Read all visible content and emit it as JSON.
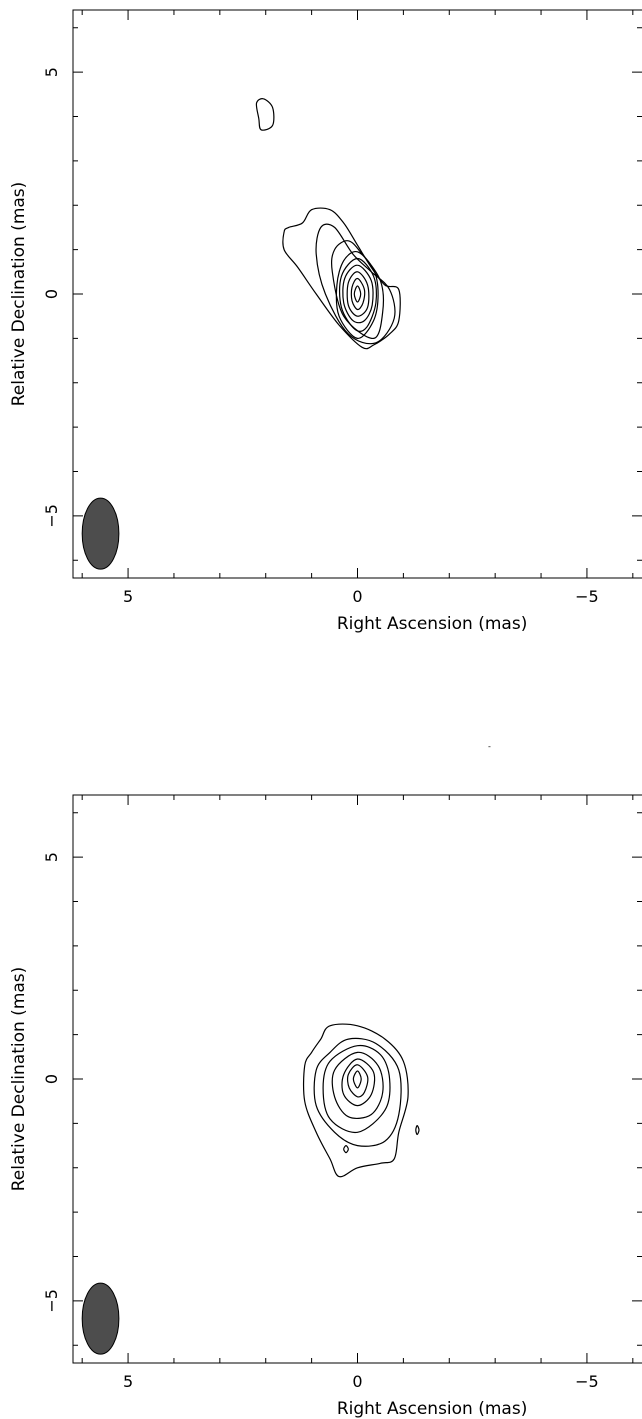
{
  "chart_data": [
    {
      "type": "contour",
      "xlabel": "Right Ascension  (mas)",
      "ylabel": "Relative Declination  (mas)",
      "xlim": [
        6.2,
        -6.2
      ],
      "ylim": [
        -6.4,
        6.4
      ],
      "x_ticks": [
        5,
        0,
        -5
      ],
      "x_tick_labels": [
        "5",
        "0",
        "−5"
      ],
      "y_ticks": [
        5,
        0,
        -5
      ],
      "y_tick_labels": [
        "5",
        "0",
        "−5"
      ],
      "beam": {
        "ra": 5.6,
        "dec": -5.4,
        "major_axis": 0.8,
        "minor_axis": 0.4,
        "position_angle_deg": 0,
        "color": "#4d4d4d"
      },
      "contours": [
        {
          "level": 1,
          "points": [
            [
              1.5,
              1.5
            ],
            [
              1.2,
              1.6
            ],
            [
              1.0,
              1.9
            ],
            [
              0.6,
              1.9
            ],
            [
              0.3,
              1.6
            ],
            [
              0.0,
              1.1
            ],
            [
              -0.3,
              0.6
            ],
            [
              -0.6,
              0.2
            ],
            [
              -0.9,
              0.1
            ],
            [
              -0.9,
              -0.6
            ],
            [
              -0.7,
              -0.9
            ],
            [
              -0.35,
              -1.15
            ],
            [
              -0.1,
              -1.2
            ],
            [
              0.4,
              -0.7
            ],
            [
              0.9,
              0.0
            ],
            [
              1.3,
              0.6
            ],
            [
              1.6,
              1.0
            ],
            [
              1.6,
              1.4
            ]
          ]
        },
        {
          "level": 2,
          "points": [
            [
              0.8,
              1.5
            ],
            [
              0.5,
              1.5
            ],
            [
              0.1,
              0.9
            ],
            [
              -0.3,
              0.5
            ],
            [
              -0.7,
              0.1
            ],
            [
              -0.8,
              -0.55
            ],
            [
              -0.4,
              -1.1
            ],
            [
              0.2,
              -0.9
            ],
            [
              0.7,
              0.0
            ],
            [
              0.9,
              0.9
            ]
          ]
        },
        {
          "level": 3,
          "points": [
            [
              0.2,
              1.2
            ],
            [
              -0.1,
              0.9
            ],
            [
              -0.5,
              0.3
            ],
            [
              -0.55,
              -0.4
            ],
            [
              -0.35,
              -1.0
            ],
            [
              0.3,
              -0.5
            ],
            [
              0.55,
              0.5
            ],
            [
              0.5,
              1.0
            ]
          ]
        },
        {
          "level": 4,
          "points": [
            [
              0.0,
              0.95
            ],
            [
              -0.35,
              0.55
            ],
            [
              -0.45,
              0.0
            ],
            [
              -0.35,
              -0.6
            ],
            [
              0.0,
              -1.0
            ],
            [
              0.4,
              -0.5
            ],
            [
              0.45,
              0.2
            ],
            [
              0.3,
              0.75
            ]
          ]
        },
        {
          "level": 5,
          "points": [
            [
              0.0,
              0.8
            ],
            [
              -0.35,
              0.4
            ],
            [
              -0.4,
              -0.2
            ],
            [
              -0.2,
              -0.75
            ],
            [
              0.05,
              -0.8
            ],
            [
              0.35,
              -0.3
            ],
            [
              0.35,
              0.4
            ]
          ]
        },
        {
          "level": 6,
          "points": [
            [
              0.0,
              0.65
            ],
            [
              -0.3,
              0.3
            ],
            [
              -0.32,
              -0.25
            ],
            [
              -0.15,
              -0.6
            ],
            [
              0.1,
              -0.6
            ],
            [
              0.3,
              -0.2
            ],
            [
              0.28,
              0.35
            ]
          ]
        },
        {
          "level": 7,
          "points": [
            [
              0.0,
              0.5
            ],
            [
              -0.22,
              0.2
            ],
            [
              -0.22,
              -0.3
            ],
            [
              0.0,
              -0.5
            ],
            [
              0.2,
              -0.25
            ],
            [
              0.2,
              0.25
            ]
          ]
        },
        {
          "level": 8,
          "points": [
            [
              0.0,
              0.35
            ],
            [
              -0.15,
              0.1
            ],
            [
              -0.12,
              -0.2
            ],
            [
              0.0,
              -0.35
            ],
            [
              0.12,
              -0.15
            ],
            [
              0.12,
              0.15
            ]
          ]
        },
        {
          "level": 9,
          "points": [
            [
              0.0,
              0.18
            ],
            [
              -0.07,
              0.0
            ],
            [
              0.0,
              -0.18
            ],
            [
              0.07,
              0.0
            ]
          ]
        },
        {
          "level": 1,
          "points": [
            [
              2.05,
              4.4
            ],
            [
              1.85,
              4.2
            ],
            [
              1.85,
              3.8
            ],
            [
              2.1,
              3.7
            ],
            [
              2.15,
              3.95
            ],
            [
              2.2,
              4.3
            ]
          ]
        }
      ]
    },
    {
      "type": "contour",
      "xlabel": "Right Ascension  (mas)",
      "ylabel": "Relative Declination  (mas)",
      "xlim": [
        6.2,
        -6.2
      ],
      "ylim": [
        -6.4,
        6.4
      ],
      "x_ticks": [
        5,
        0,
        -5
      ],
      "x_tick_labels": [
        "5",
        "0",
        "−5"
      ],
      "y_ticks": [
        5,
        0,
        -5
      ],
      "y_tick_labels": [
        "5",
        "0",
        "−5"
      ],
      "beam": {
        "ra": 5.6,
        "dec": -5.4,
        "major_axis": 0.8,
        "minor_axis": 0.4,
        "position_angle_deg": 0,
        "color": "#4d4d4d"
      },
      "contours": [
        {
          "level": 1,
          "points": [
            [
              0.6,
              1.2
            ],
            [
              0.0,
              1.2
            ],
            [
              -0.6,
              0.9
            ],
            [
              -1.0,
              0.4
            ],
            [
              -1.1,
              -0.4
            ],
            [
              -0.9,
              -1.2
            ],
            [
              -0.8,
              -1.8
            ],
            [
              -0.5,
              -1.9
            ],
            [
              0.0,
              -2.0
            ],
            [
              0.4,
              -2.2
            ],
            [
              0.6,
              -1.8
            ],
            [
              0.9,
              -1.2
            ],
            [
              1.15,
              -0.5
            ],
            [
              1.15,
              0.3
            ],
            [
              1.0,
              0.6
            ],
            [
              0.8,
              0.9
            ]
          ]
        },
        {
          "level": 2,
          "points": [
            [
              0.2,
              0.9
            ],
            [
              -0.4,
              0.8
            ],
            [
              -0.9,
              0.2
            ],
            [
              -0.9,
              -0.8
            ],
            [
              -0.6,
              -1.4
            ],
            [
              0.0,
              -1.5
            ],
            [
              0.5,
              -1.2
            ],
            [
              0.9,
              -0.6
            ],
            [
              0.9,
              0.2
            ],
            [
              0.6,
              0.6
            ]
          ]
        },
        {
          "level": 3,
          "points": [
            [
              0.0,
              0.75
            ],
            [
              -0.5,
              0.55
            ],
            [
              -0.7,
              0.0
            ],
            [
              -0.6,
              -0.7
            ],
            [
              0.0,
              -1.2
            ],
            [
              0.6,
              -0.9
            ],
            [
              0.75,
              -0.2
            ],
            [
              0.6,
              0.4
            ]
          ]
        },
        {
          "level": 4,
          "points": [
            [
              0.0,
              0.6
            ],
            [
              -0.45,
              0.3
            ],
            [
              -0.55,
              -0.3
            ],
            [
              -0.3,
              -0.8
            ],
            [
              0.2,
              -0.85
            ],
            [
              0.5,
              -0.4
            ],
            [
              0.5,
              0.2
            ]
          ]
        },
        {
          "level": 5,
          "points": [
            [
              0.0,
              0.45
            ],
            [
              -0.35,
              0.15
            ],
            [
              -0.3,
              -0.35
            ],
            [
              0.0,
              -0.6
            ],
            [
              0.3,
              -0.35
            ],
            [
              0.3,
              0.1
            ]
          ]
        },
        {
          "level": 6,
          "points": [
            [
              0.0,
              0.32
            ],
            [
              -0.22,
              0.05
            ],
            [
              -0.15,
              -0.3
            ],
            [
              0.0,
              -0.4
            ],
            [
              0.18,
              -0.2
            ],
            [
              0.2,
              0.1
            ]
          ]
        },
        {
          "level": 7,
          "points": [
            [
              0.0,
              0.18
            ],
            [
              -0.08,
              0.0
            ],
            [
              0.0,
              -0.2
            ],
            [
              0.09,
              0.0
            ]
          ]
        },
        {
          "level": 1,
          "points": [
            [
              -1.3,
              -1.05
            ],
            [
              -1.34,
              -1.15
            ],
            [
              -1.3,
              -1.25
            ],
            [
              -1.27,
              -1.15
            ]
          ]
        },
        {
          "level": 1,
          "points": [
            [
              0.25,
              -1.5
            ],
            [
              0.2,
              -1.58
            ],
            [
              0.25,
              -1.66
            ],
            [
              0.3,
              -1.58
            ]
          ]
        }
      ]
    }
  ]
}
